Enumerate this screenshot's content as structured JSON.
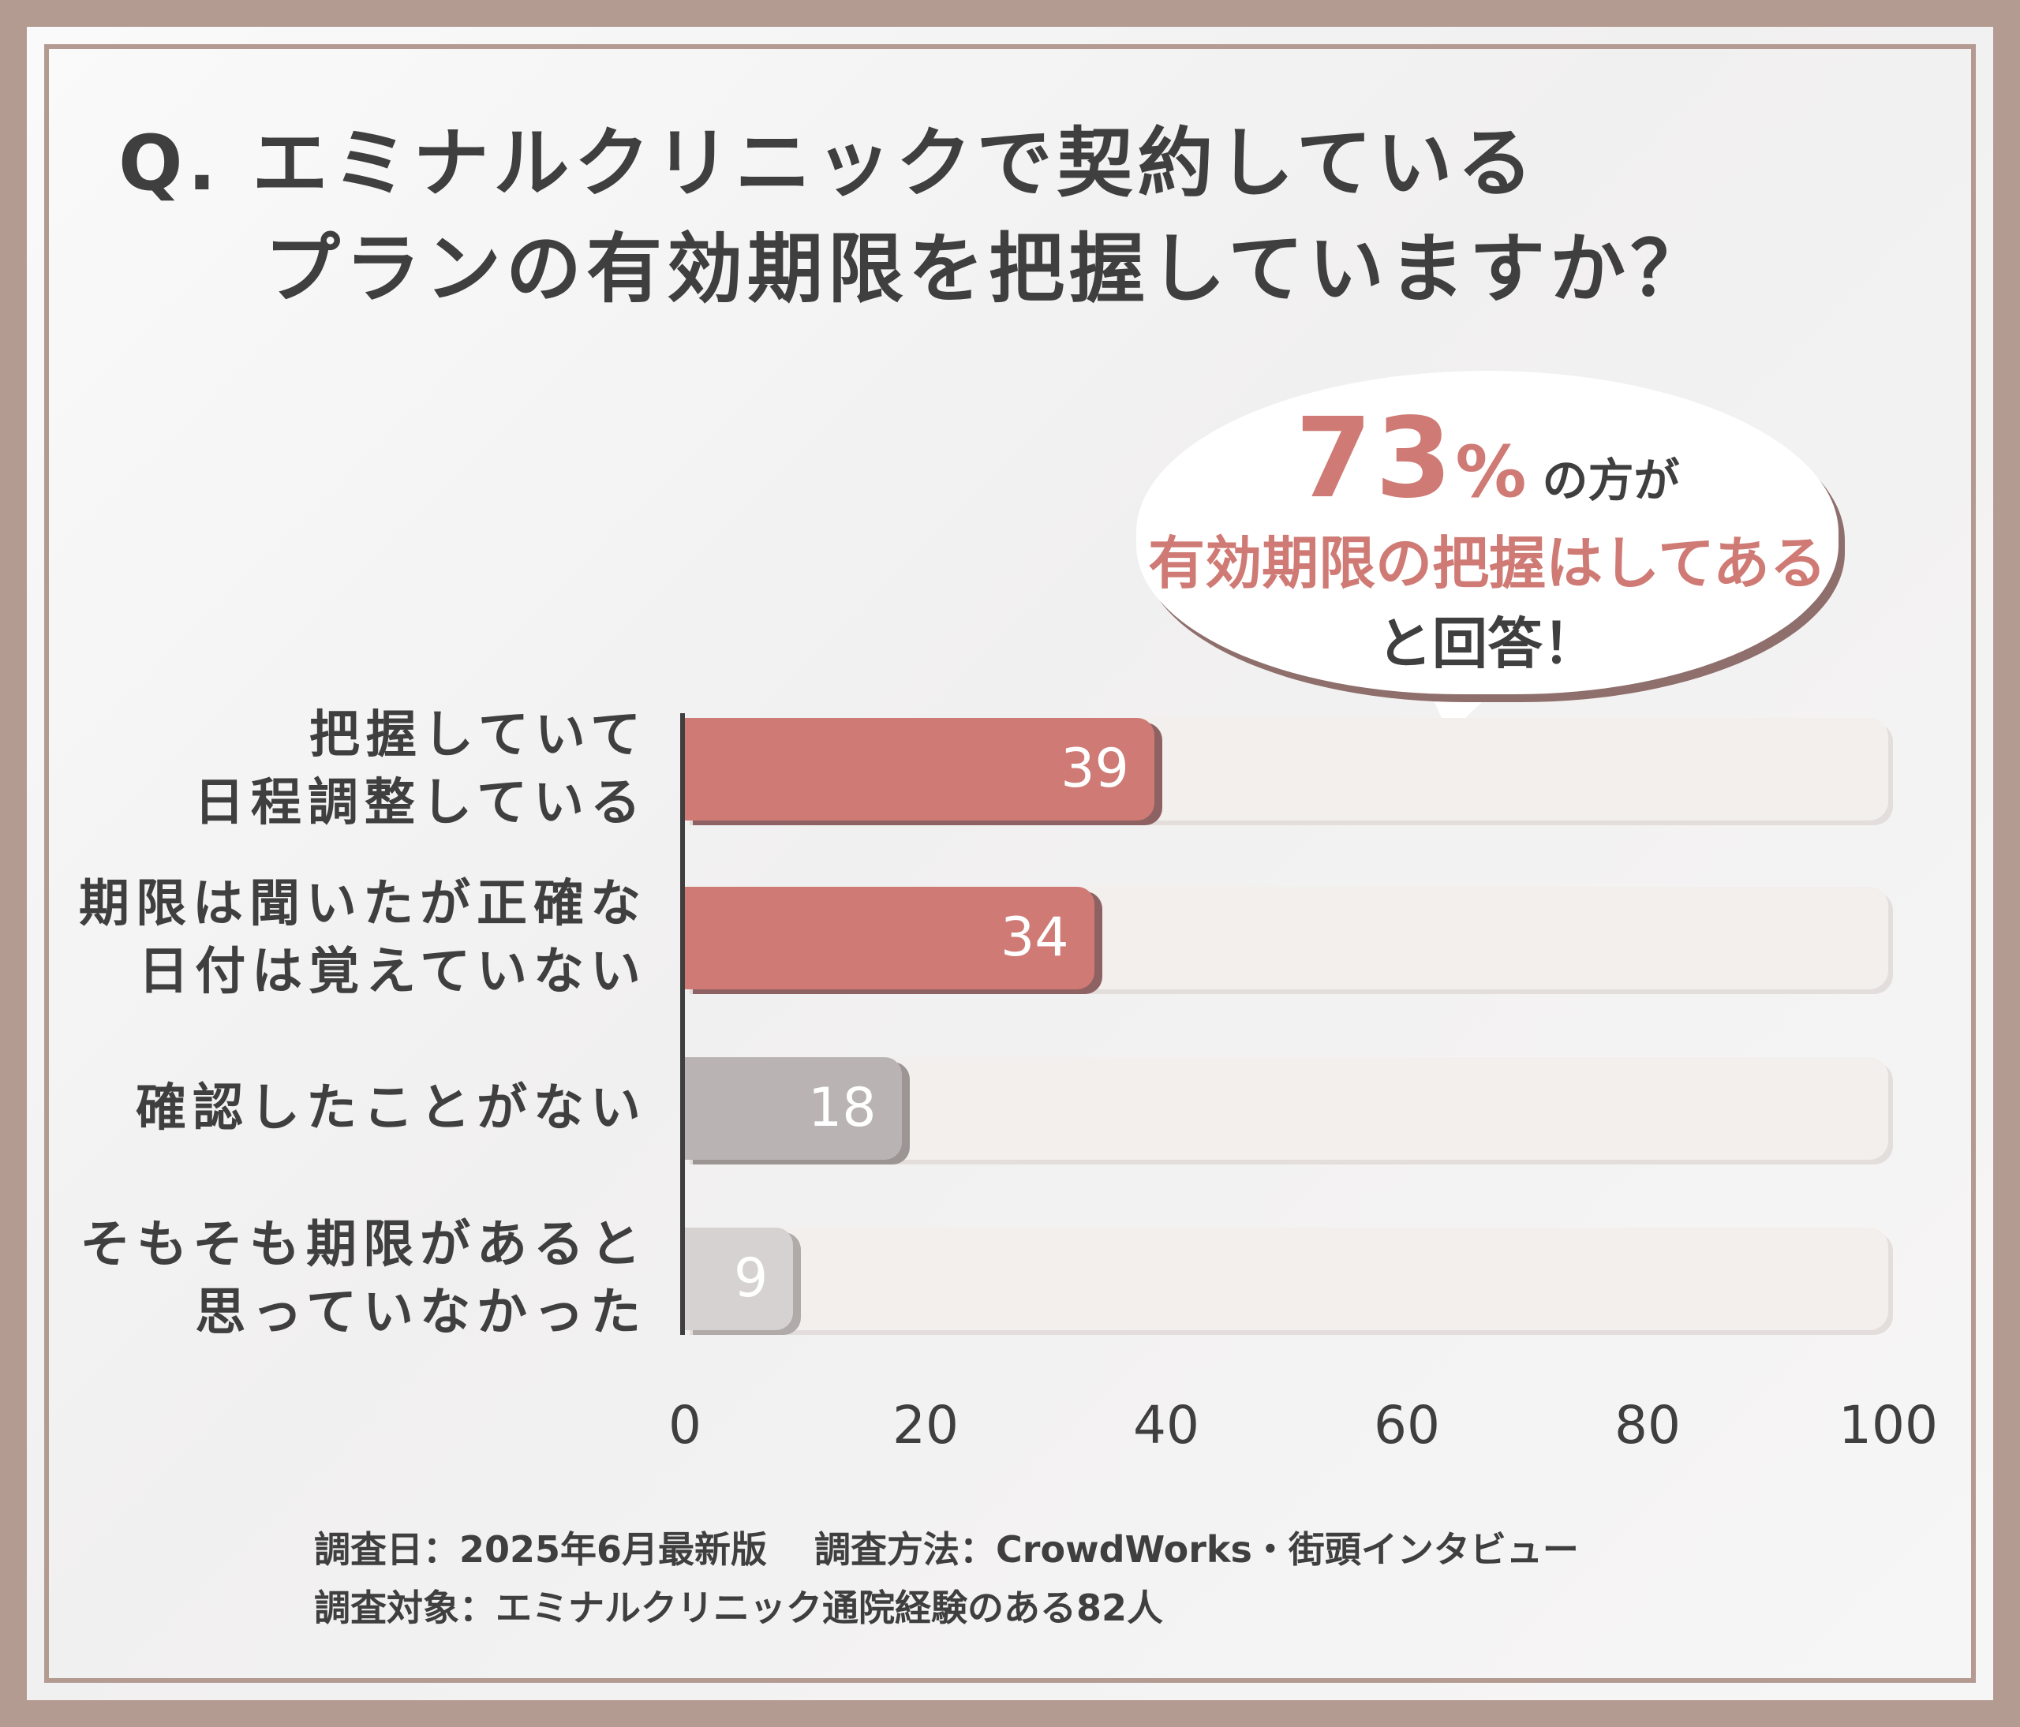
{
  "title": {
    "line1": "Q. エミナルクリニックで契約している",
    "line2": "プランの有効期限を把握していますか？"
  },
  "callout": {
    "percent": "73",
    "percent_sign": "%",
    "text1": "の方が",
    "text2": "有効期限の把握はしてある",
    "text3": "と回答！"
  },
  "colors": {
    "accent": "#cf7a74",
    "accent_shadow": "#8e6262",
    "gray1": "#b9b4b3",
    "gray2": "#d5d2d1",
    "frame": "#b39b91"
  },
  "chart_data": {
    "type": "bar",
    "orientation": "horizontal",
    "categories": [
      [
        "把握していて",
        "日程調整している"
      ],
      [
        "期限は聞いたが正確な",
        "日付は覚えていない"
      ],
      [
        "確認したことがない"
      ],
      [
        "そもそも期限があると",
        "思っていなかった"
      ]
    ],
    "values": [
      39,
      34,
      18,
      9
    ],
    "xlim": [
      0,
      100
    ],
    "xticks": [
      "0",
      "20",
      "40",
      "60",
      "80",
      "100"
    ],
    "bar_colors": [
      "#cf7a74",
      "#cf7a74",
      "#b9b4b3",
      "#d5d2d1"
    ],
    "bar_shadow_colors": [
      "#8e6262",
      "#8e6262",
      "#9c9594",
      "#b0aaa9"
    ]
  },
  "footer": {
    "date": "調査日：2025年6月最新版",
    "method": "調査方法：CrowdWorks・街頭インタビュー",
    "target": "調査対象：エミナルクリニック通院経験のある82人"
  }
}
